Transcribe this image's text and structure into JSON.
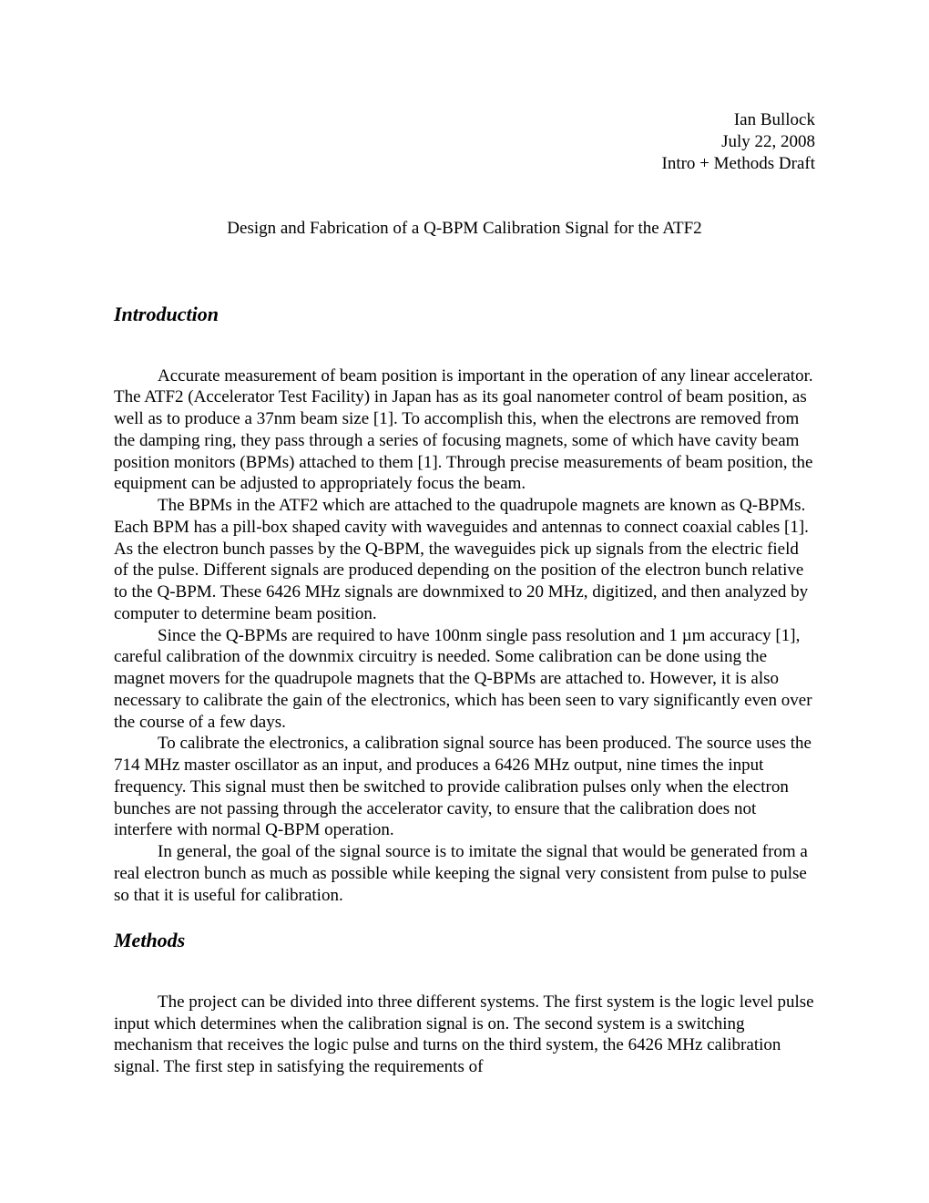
{
  "header": {
    "author": "Ian Bullock",
    "date": "July 22, 2008",
    "draft_label": "Intro + Methods Draft"
  },
  "title": "Design and Fabrication of a Q-BPM Calibration Signal for the ATF2",
  "sections": {
    "introduction": {
      "heading": "Introduction",
      "paragraphs": [
        "Accurate measurement of beam position is important in the operation of any linear accelerator. The ATF2 (Accelerator Test Facility) in Japan has as its goal nanometer control of beam position, as well as to produce a 37nm beam size [1]. To accomplish this, when the electrons are removed from the damping ring, they pass through a series of focusing magnets, some of which have cavity beam position monitors (BPMs) attached to them [1]. Through precise measurements of beam position, the equipment can be adjusted to appropriately focus the beam.",
        "The BPMs in the ATF2 which are attached to the quadrupole magnets are known as Q-BPMs. Each BPM has a pill-box shaped cavity with waveguides and antennas to connect coaxial cables [1]. As the electron bunch passes by the Q-BPM, the waveguides pick up signals from the electric field of the pulse. Different signals are produced depending on the position of the electron bunch relative to the Q-BPM. These 6426 MHz signals are downmixed to 20 MHz, digitized, and then analyzed by computer to determine beam position.",
        "Since the Q-BPMs are required to have 100nm single pass resolution and 1 µm accuracy [1], careful calibration of the downmix circuitry is needed. Some calibration can be done using the magnet movers for the quadrupole magnets that the Q-BPMs are attached to. However, it is also necessary to calibrate the gain of the electronics, which has been seen to vary significantly even over the course of a few days.",
        "To calibrate the electronics, a calibration signal source has been produced. The source uses the 714 MHz master oscillator as an input, and produces a 6426 MHz output, nine times the input frequency. This signal must then be switched to provide calibration pulses only when the electron bunches are not passing through the accelerator cavity, to ensure that the calibration does not interfere with normal Q-BPM operation.",
        "In general, the goal of the signal source is to imitate the signal that would be generated from a real electron bunch as much as possible while keeping the signal very consistent from pulse to pulse so that it is useful for calibration."
      ]
    },
    "methods": {
      "heading": "Methods",
      "paragraphs": [
        "The project can be divided into three different systems. The first system is the logic level pulse input which determines when the calibration signal is on. The second system is a switching mechanism that receives the logic pulse and turns on the third system, the 6426 MHz calibration signal. The first step in satisfying the requirements of"
      ]
    }
  }
}
